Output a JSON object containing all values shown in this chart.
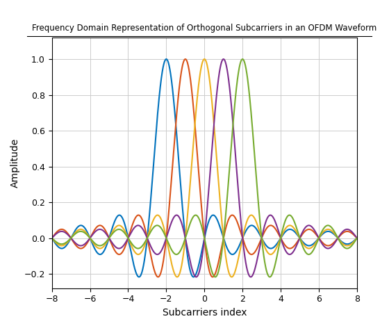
{
  "title": "Frequency Domain Representation of Orthogonal Subcarriers in an OFDM Waveform",
  "xlabel": "Subcarriers index",
  "ylabel": "Amplitude",
  "xlim": [
    -8,
    8
  ],
  "ylim": [
    -0.28,
    1.12
  ],
  "subcarrier_centers": [
    -2,
    -1,
    0,
    1,
    2
  ],
  "colors": [
    "#0072BD",
    "#D95319",
    "#EDB120",
    "#7E2F8E",
    "#77AC30"
  ],
  "linewidth": 1.5,
  "title_fontsize": 8.5,
  "axis_label_fontsize": 10,
  "tick_fontsize": 9,
  "background_color": "#FFFFFF",
  "grid_color": "#CCCCCC",
  "yticks": [
    -0.2,
    0,
    0.2,
    0.4,
    0.6,
    0.8,
    1.0
  ],
  "xticks": [
    -8,
    -6,
    -4,
    -2,
    0,
    2,
    4,
    6,
    8
  ]
}
